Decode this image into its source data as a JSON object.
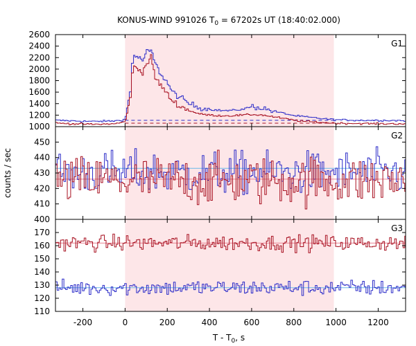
{
  "title_main": "KONUS-WIND 991026 T",
  "title_sub": "0",
  "title_rest": " = 67202s UT (18:40:02.000)",
  "ylabel": "counts / sec",
  "xlabel_main": "T - T",
  "xlabel_sub": "0",
  "xlabel_rest": ", s",
  "colors": {
    "shade": "#fde6e8",
    "blue": "#2b2bc8",
    "red": "#a81020",
    "light_blue": "#6ab8e8",
    "light_red": "#e88090"
  },
  "chart_data": {
    "type": "line",
    "x_range": [
      -330,
      1330
    ],
    "x_ticks": [
      -200,
      0,
      200,
      400,
      600,
      800,
      1000,
      1200
    ],
    "x_tick_labels": [
      "-200",
      "0",
      "200",
      "400",
      "600",
      "800",
      "1000",
      "1200"
    ],
    "shaded_interval": [
      0,
      990
    ],
    "panels": [
      {
        "name": "G1",
        "ylim": [
          1000,
          2600
        ],
        "yticks": [
          1000,
          1200,
          1400,
          1600,
          1800,
          2000,
          2200,
          2400,
          2600
        ],
        "ytick_labels": [
          "1000",
          "1200",
          "1400",
          "1600",
          "1800",
          "2000",
          "2200",
          "2400",
          "2600"
        ],
        "background_levels": [
          1110,
          1060
        ],
        "series": [
          {
            "color": "blue",
            "points": [
              [
                -330,
                1110
              ],
              [
                -250,
                1100
              ],
              [
                -150,
                1090
              ],
              [
                -50,
                1100
              ],
              [
                -10,
                1120
              ],
              [
                0,
                1180
              ],
              [
                20,
                1600
              ],
              [
                30,
                2100
              ],
              [
                40,
                2250
              ],
              [
                60,
                2200
              ],
              [
                80,
                2150
              ],
              [
                100,
                2300
              ],
              [
                120,
                2320
              ],
              [
                140,
                2100
              ],
              [
                160,
                1950
              ],
              [
                180,
                1850
              ],
              [
                200,
                1750
              ],
              [
                220,
                1600
              ],
              [
                260,
                1500
              ],
              [
                300,
                1400
              ],
              [
                350,
                1330
              ],
              [
                400,
                1300
              ],
              [
                450,
                1280
              ],
              [
                500,
                1280
              ],
              [
                550,
                1300
              ],
              [
                600,
                1350
              ],
              [
                650,
                1320
              ],
              [
                700,
                1270
              ],
              [
                750,
                1230
              ],
              [
                800,
                1190
              ],
              [
                850,
                1170
              ],
              [
                900,
                1150
              ],
              [
                990,
                1120
              ],
              [
                1100,
                1110
              ],
              [
                1200,
                1110
              ],
              [
                1330,
                1105
              ]
            ]
          },
          {
            "color": "red",
            "points": [
              [
                -330,
                1060
              ],
              [
                -250,
                1050
              ],
              [
                -150,
                1040
              ],
              [
                -50,
                1050
              ],
              [
                -10,
                1080
              ],
              [
                0,
                1120
              ],
              [
                20,
                1500
              ],
              [
                30,
                1900
              ],
              [
                40,
                2050
              ],
              [
                60,
                2000
              ],
              [
                80,
                1950
              ],
              [
                100,
                2100
              ],
              [
                120,
                2200
              ],
              [
                140,
                1850
              ],
              [
                160,
                1750
              ],
              [
                180,
                1650
              ],
              [
                200,
                1550
              ],
              [
                220,
                1450
              ],
              [
                260,
                1350
              ],
              [
                300,
                1280
              ],
              [
                350,
                1220
              ],
              [
                400,
                1200
              ],
              [
                450,
                1190
              ],
              [
                500,
                1190
              ],
              [
                550,
                1200
              ],
              [
                600,
                1210
              ],
              [
                650,
                1200
              ],
              [
                700,
                1170
              ],
              [
                750,
                1140
              ],
              [
                800,
                1110
              ],
              [
                850,
                1090
              ],
              [
                900,
                1080
              ],
              [
                990,
                1060
              ],
              [
                1100,
                1055
              ],
              [
                1200,
                1050
              ],
              [
                1330,
                1050
              ]
            ]
          }
        ]
      },
      {
        "name": "G2",
        "ylim": [
          400,
          460
        ],
        "yticks": [
          400,
          410,
          420,
          430,
          440,
          450
        ],
        "ytick_labels": [
          "400",
          "410",
          "420",
          "430",
          "440",
          "450"
        ],
        "background_levels": [
          433,
          426
        ],
        "series": [
          {
            "color": "blue",
            "mean": 430,
            "noise": 7
          },
          {
            "color": "red",
            "mean": 425,
            "noise": 8
          }
        ]
      },
      {
        "name": "G3",
        "ylim": [
          110,
          180
        ],
        "yticks": [
          110,
          120,
          130,
          140,
          150,
          160,
          170
        ],
        "ytick_labels": [
          "110",
          "120",
          "130",
          "140",
          "150",
          "160",
          "170"
        ],
        "background_levels": [
          162,
          128
        ],
        "series": [
          {
            "color": "red",
            "mean": 162,
            "noise": 3
          },
          {
            "color": "blue",
            "mean": 128,
            "noise": 3
          }
        ]
      }
    ]
  }
}
